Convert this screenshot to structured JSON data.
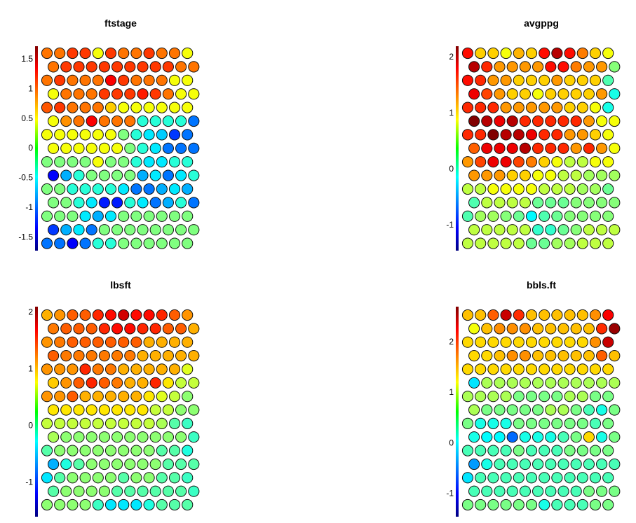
{
  "chart_data": [
    {
      "type": "heatmap",
      "title": "ftstage",
      "scale_range": [
        -1.72,
        1.72
      ],
      "ticks": [
        1.5,
        1,
        0.5,
        0,
        -0.5,
        -1,
        -1.5
      ],
      "tick_labels": [
        "1.5",
        "1",
        "0.5",
        "0",
        "-0.5",
        "-1",
        "-1.5"
      ],
      "grid": "hexagonal 15 rows x 12 cells, odd rows offset right",
      "values": [
        [
          0.9,
          0.9,
          1.1,
          1.1,
          0.4,
          1.1,
          0.9,
          0.9,
          1.1,
          0.9,
          0.9,
          0.4
        ],
        [
          0.9,
          1.1,
          1.1,
          1.1,
          1.1,
          1.1,
          1.1,
          1.1,
          1.1,
          1.1,
          0.9,
          0.9
        ],
        [
          0.9,
          1.1,
          0.9,
          0.9,
          0.9,
          1.3,
          1.1,
          0.9,
          0.9,
          0.9,
          0.4,
          0.4
        ],
        [
          0.4,
          0.9,
          0.9,
          0.9,
          1.1,
          1.1,
          1.1,
          1.2,
          1.1,
          0.9,
          0.4,
          0.4
        ],
        [
          1.0,
          1.1,
          0.9,
          0.9,
          0.9,
          0.6,
          0.4,
          0.4,
          0.4,
          0.4,
          0.4,
          0.4
        ],
        [
          0.4,
          0.8,
          0.9,
          1.3,
          0.9,
          0.9,
          0.9,
          -0.3,
          -0.3,
          -0.3,
          -0.3,
          -0.9
        ],
        [
          0.4,
          0.4,
          0.4,
          0.4,
          0.4,
          0.4,
          0.0,
          -0.3,
          -0.5,
          -0.6,
          -1.1,
          -0.9
        ],
        [
          0.4,
          0.4,
          0.4,
          0.4,
          0.4,
          0.4,
          0.0,
          -0.3,
          -0.5,
          -0.9,
          -0.9,
          -0.9
        ],
        [
          0.0,
          0.0,
          0.0,
          0.0,
          0.4,
          0.0,
          0.0,
          -0.3,
          -0.5,
          -0.5,
          -0.3,
          -0.3
        ],
        [
          -1.3,
          -0.7,
          -0.3,
          0.0,
          0.0,
          0.0,
          0.0,
          -0.7,
          -0.5,
          -0.9,
          -0.5,
          -0.3
        ],
        [
          0.0,
          0.0,
          -0.3,
          -0.3,
          -0.3,
          -0.3,
          -0.5,
          -0.9,
          -0.9,
          -0.7,
          -0.5,
          -0.7
        ],
        [
          0.0,
          0.0,
          -0.3,
          -0.5,
          -1.2,
          -1.2,
          -0.3,
          -0.5,
          -0.9,
          -0.7,
          -0.3,
          -0.9
        ],
        [
          0.0,
          0.0,
          0.0,
          -0.5,
          -0.7,
          -0.5,
          0.0,
          0.0,
          0.0,
          0.0,
          0.0,
          0.0
        ],
        [
          -1.1,
          -0.7,
          -0.5,
          -0.9,
          0.0,
          0.0,
          0.0,
          0.0,
          0.0,
          0.0,
          0.0,
          0.0
        ],
        [
          -0.9,
          -0.9,
          -1.3,
          -0.9,
          -0.3,
          -0.3,
          0.0,
          0.0,
          0.0,
          0.0,
          0.0,
          0.0
        ]
      ]
    },
    {
      "type": "heatmap",
      "title": "avgppg",
      "scale_range": [
        -1.45,
        2.2
      ],
      "ticks": [
        2,
        1,
        0,
        -1
      ],
      "tick_labels": [
        "2",
        "1",
        "0",
        "-1"
      ],
      "grid": "hexagonal 15 rows x 12 cells, odd rows offset right",
      "values": [
        [
          1.7,
          1.0,
          1.0,
          0.8,
          1.1,
          1.0,
          1.7,
          2.0,
          1.7,
          1.3,
          1.0,
          0.8
        ],
        [
          2.0,
          1.6,
          1.2,
          1.2,
          1.2,
          1.2,
          1.7,
          1.7,
          1.3,
          1.2,
          1.2,
          0.4
        ],
        [
          1.7,
          1.6,
          1.2,
          1.2,
          1.0,
          1.0,
          1.0,
          1.2,
          1.0,
          1.0,
          1.0,
          0.2
        ],
        [
          1.8,
          1.5,
          1.2,
          1.0,
          1.0,
          0.8,
          1.0,
          1.0,
          1.0,
          1.0,
          1.2,
          0.0
        ],
        [
          1.6,
          1.6,
          1.6,
          1.2,
          1.2,
          1.2,
          1.2,
          1.2,
          1.0,
          1.0,
          0.8,
          0.0
        ],
        [
          2.2,
          2.0,
          1.8,
          2.0,
          1.6,
          1.6,
          1.6,
          1.6,
          1.6,
          1.2,
          0.8,
          0.8
        ],
        [
          1.6,
          1.6,
          2.2,
          2.0,
          2.0,
          1.8,
          1.6,
          1.6,
          1.2,
          1.2,
          1.0,
          0.8
        ],
        [
          1.4,
          1.8,
          1.8,
          1.8,
          2.0,
          1.6,
          1.6,
          1.6,
          1.2,
          1.6,
          1.2,
          0.8
        ],
        [
          1.2,
          1.5,
          1.8,
          1.8,
          1.5,
          1.3,
          1.0,
          0.8,
          0.6,
          0.6,
          0.8,
          0.8
        ],
        [
          1.2,
          1.2,
          1.2,
          1.0,
          1.0,
          0.8,
          0.8,
          0.6,
          0.6,
          0.5,
          0.5,
          0.5
        ],
        [
          0.6,
          0.6,
          0.8,
          0.8,
          0.8,
          0.8,
          0.6,
          0.6,
          0.6,
          0.5,
          0.5,
          0.3
        ],
        [
          0.2,
          0.6,
          0.6,
          0.6,
          0.6,
          0.3,
          0.3,
          0.3,
          0.4,
          0.4,
          0.4,
          0.4
        ],
        [
          0.2,
          0.5,
          0.5,
          0.4,
          0.3,
          -0.1,
          0.2,
          0.3,
          0.4,
          0.4,
          0.4,
          0.4
        ],
        [
          0.6,
          0.6,
          0.6,
          0.6,
          0.6,
          0.1,
          0.1,
          0.3,
          0.4,
          0.6,
          0.6,
          0.6
        ],
        [
          0.6,
          0.6,
          0.6,
          0.6,
          0.6,
          0.3,
          0.3,
          0.5,
          0.5,
          0.6,
          0.6,
          0.6
        ]
      ]
    },
    {
      "type": "heatmap",
      "title": "lbsft",
      "scale_range": [
        -1.6,
        2.1
      ],
      "ticks": [
        2,
        1,
        0,
        -1
      ],
      "tick_labels": [
        "2",
        "1",
        "0",
        "-1"
      ],
      "grid": "hexagonal 15 rows x 12 cells, odd rows offset right",
      "values": [
        [
          1.0,
          1.1,
          1.3,
          1.3,
          1.5,
          1.6,
          1.8,
          1.6,
          1.6,
          1.5,
          1.3,
          1.1
        ],
        [
          1.2,
          1.3,
          1.3,
          1.3,
          1.5,
          1.6,
          1.6,
          1.5,
          1.5,
          1.3,
          1.3,
          1.0
        ],
        [
          1.1,
          1.2,
          1.3,
          1.3,
          1.3,
          1.3,
          1.3,
          1.3,
          1.0,
          1.0,
          1.0,
          1.0
        ],
        [
          1.3,
          1.2,
          1.2,
          1.2,
          1.2,
          1.2,
          1.2,
          1.0,
          1.0,
          1.0,
          1.0,
          1.0
        ],
        [
          1.1,
          1.1,
          1.1,
          1.5,
          1.2,
          1.2,
          1.0,
          1.0,
          1.0,
          1.0,
          1.0,
          0.6
        ],
        [
          0.9,
          1.1,
          1.3,
          1.5,
          1.3,
          1.2,
          1.0,
          1.0,
          1.5,
          0.8,
          0.5,
          0.5
        ],
        [
          1.1,
          1.1,
          1.3,
          1.0,
          1.0,
          1.0,
          1.0,
          1.0,
          0.8,
          0.6,
          0.5,
          0.3
        ],
        [
          0.8,
          0.8,
          0.8,
          0.8,
          0.8,
          0.8,
          0.8,
          0.8,
          0.5,
          0.5,
          0.3,
          0.3
        ],
        [
          0.5,
          0.5,
          0.5,
          0.5,
          0.5,
          0.5,
          0.5,
          0.5,
          0.5,
          0.4,
          0.1,
          0.0
        ],
        [
          0.4,
          0.3,
          0.3,
          0.3,
          0.3,
          0.3,
          0.3,
          0.3,
          0.3,
          0.3,
          0.3,
          0.0
        ],
        [
          0.1,
          0.3,
          0.3,
          0.3,
          0.3,
          0.3,
          0.3,
          0.3,
          0.3,
          0.1,
          0.1,
          -0.1
        ],
        [
          -0.5,
          -0.1,
          0.1,
          0.3,
          0.3,
          0.3,
          0.3,
          0.3,
          0.3,
          0.1,
          0.1,
          0.1
        ],
        [
          -0.3,
          0.1,
          0.3,
          0.3,
          0.3,
          0.3,
          0.1,
          0.3,
          0.3,
          0.1,
          0.1,
          0.0
        ],
        [
          0.1,
          0.3,
          0.3,
          0.3,
          0.3,
          0.1,
          0.1,
          0.1,
          0.1,
          0.1,
          0.1,
          0.0
        ],
        [
          0.3,
          0.3,
          0.3,
          0.3,
          0.0,
          -0.3,
          -0.3,
          -0.3,
          -0.1,
          0.1,
          0.1,
          0.1
        ]
      ]
    },
    {
      "type": "heatmap",
      "title": "bbls.ft",
      "scale_range": [
        -1.45,
        2.7
      ],
      "ticks": [
        2,
        1,
        0,
        -1
      ],
      "tick_labels": [
        "2",
        "1",
        "0",
        "-1"
      ],
      "grid": "hexagonal 15 rows x 12 cells, odd rows offset right",
      "values": [
        [
          1.4,
          1.4,
          1.8,
          2.4,
          2.0,
          1.4,
          1.4,
          1.4,
          1.4,
          1.4,
          1.6,
          2.2
        ],
        [
          1.1,
          1.4,
          1.6,
          1.6,
          1.6,
          1.4,
          1.4,
          1.4,
          1.4,
          1.4,
          2.0,
          2.6
        ],
        [
          1.3,
          1.3,
          1.3,
          1.3,
          1.3,
          1.3,
          1.3,
          1.3,
          1.3,
          1.3,
          1.6,
          2.4
        ],
        [
          1.3,
          1.3,
          1.4,
          1.6,
          1.6,
          1.4,
          1.4,
          1.4,
          1.4,
          1.4,
          1.8,
          1.4
        ],
        [
          1.3,
          1.3,
          1.3,
          1.3,
          1.3,
          1.3,
          1.3,
          1.3,
          1.3,
          1.3,
          1.3,
          1.3
        ],
        [
          0.0,
          0.8,
          0.8,
          0.8,
          0.8,
          0.8,
          0.8,
          0.8,
          0.8,
          0.8,
          0.8,
          0.8
        ],
        [
          0.8,
          0.8,
          0.8,
          0.8,
          0.6,
          0.6,
          0.6,
          0.6,
          0.8,
          0.8,
          0.6,
          0.6
        ],
        [
          0.8,
          0.6,
          0.6,
          0.6,
          0.6,
          0.6,
          0.8,
          0.8,
          0.6,
          0.4,
          0.2,
          0.6
        ],
        [
          0.6,
          0.2,
          0.2,
          0.2,
          0.6,
          0.6,
          0.6,
          0.6,
          0.6,
          0.6,
          0.4,
          0.6
        ],
        [
          0.2,
          0.1,
          0.1,
          -0.5,
          0.2,
          0.2,
          0.2,
          0.4,
          0.6,
          1.3,
          0.2,
          0.6
        ],
        [
          0.4,
          0.4,
          0.4,
          0.4,
          0.6,
          0.4,
          0.4,
          0.4,
          0.6,
          0.6,
          0.6,
          0.6
        ],
        [
          -0.3,
          0.2,
          0.4,
          0.4,
          0.4,
          0.4,
          0.4,
          0.4,
          0.4,
          0.4,
          0.4,
          0.4
        ],
        [
          0.0,
          0.4,
          0.4,
          0.4,
          0.4,
          0.4,
          0.4,
          0.4,
          0.4,
          0.4,
          0.4,
          0.4
        ],
        [
          0.4,
          0.4,
          0.4,
          0.4,
          0.4,
          0.4,
          0.4,
          0.4,
          0.4,
          0.6,
          0.6,
          0.6
        ],
        [
          0.6,
          0.6,
          0.6,
          0.6,
          0.6,
          0.6,
          0.2,
          0.4,
          0.4,
          0.4,
          0.6,
          0.6
        ]
      ]
    }
  ]
}
